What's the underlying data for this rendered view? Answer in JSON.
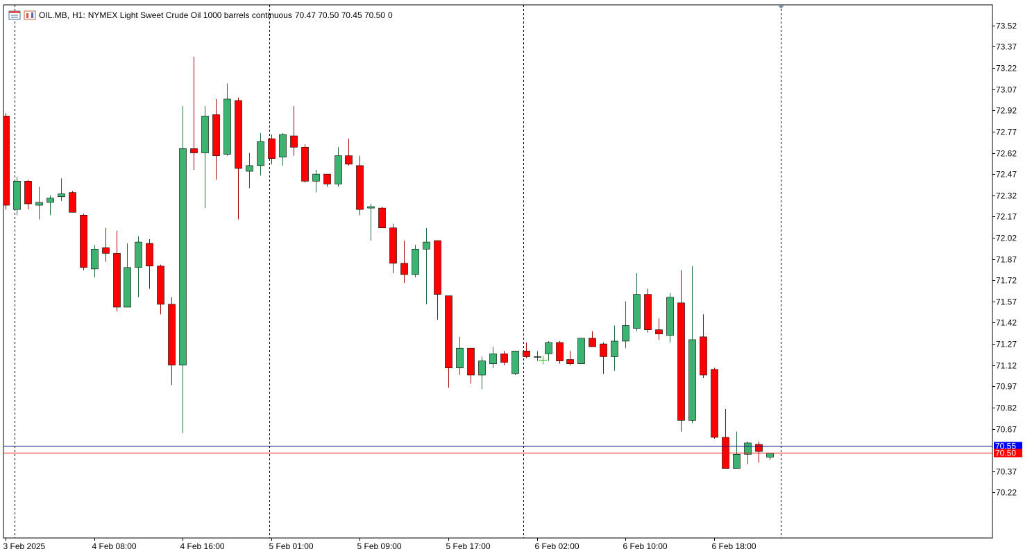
{
  "header": {
    "symbol": "OIL.MB,",
    "timeframe": "H1:",
    "description": "NYMEX Light Sweet Crude Oil 1000 barrels continuous",
    "ohlc": "70.47 70.50 70.45 70.50",
    "volume": "0"
  },
  "price_labels": {
    "ask": "70.55",
    "bid": "70.50"
  },
  "colors": {
    "bull": "#3cb371",
    "bear": "#ff0000",
    "wick": "#000000",
    "ask_label_bg": "#0000ff",
    "bid_label_bg": "#ff0000",
    "ask_line": "#000080",
    "bid_line": "#ff0000",
    "grid_vline": "#000000"
  },
  "chart_data": {
    "type": "candlestick",
    "timeframe": "H1",
    "y_ticks": [
      "73.52",
      "73.37",
      "73.22",
      "73.07",
      "72.92",
      "72.77",
      "72.62",
      "72.47",
      "72.32",
      "72.17",
      "72.02",
      "71.87",
      "71.72",
      "71.57",
      "71.42",
      "71.27",
      "71.12",
      "70.97",
      "70.82",
      "70.67",
      "70.37",
      "70.22"
    ],
    "y_range": [
      70.12,
      73.6
    ],
    "x_labels": [
      {
        "bar": 0,
        "text": "3 Feb 2025"
      },
      {
        "bar": 8,
        "text": "4 Feb 08:00"
      },
      {
        "bar": 16,
        "text": "4 Feb 16:00"
      },
      {
        "bar": 24,
        "text": "5 Feb 01:00"
      },
      {
        "bar": 32,
        "text": "5 Feb 09:00"
      },
      {
        "bar": 40,
        "text": "5 Feb 17:00"
      },
      {
        "bar": 48,
        "text": "6 Feb 02:00"
      },
      {
        "bar": 56,
        "text": "6 Feb 10:00"
      },
      {
        "bar": 64,
        "text": "6 Feb 18:00"
      }
    ],
    "vertical_separators_at_bar": [
      0.8,
      23.8,
      46.8,
      70
    ],
    "bid": 70.5,
    "ask": 70.55,
    "candles": [
      [
        72.88,
        72.9,
        72.22,
        72.25
      ],
      [
        72.22,
        72.45,
        72.18,
        72.42
      ],
      [
        72.42,
        72.43,
        72.22,
        72.26
      ],
      [
        72.25,
        72.38,
        72.15,
        72.27
      ],
      [
        72.27,
        72.32,
        72.18,
        72.3
      ],
      [
        72.31,
        72.44,
        72.28,
        72.33
      ],
      [
        72.34,
        72.35,
        72.2,
        72.2
      ],
      [
        72.18,
        72.19,
        71.79,
        71.81
      ],
      [
        71.8,
        71.97,
        71.74,
        71.94
      ],
      [
        71.95,
        72.09,
        71.85,
        71.91
      ],
      [
        71.91,
        72.07,
        71.5,
        71.53
      ],
      [
        71.53,
        71.98,
        71.53,
        71.81
      ],
      [
        71.81,
        72.03,
        71.6,
        71.99
      ],
      [
        71.98,
        72.01,
        71.66,
        71.82
      ],
      [
        71.82,
        71.83,
        71.48,
        71.55
      ],
      [
        71.55,
        71.6,
        70.98,
        71.12
      ],
      [
        71.12,
        72.95,
        70.64,
        72.65
      ],
      [
        72.65,
        73.3,
        72.5,
        72.62
      ],
      [
        72.62,
        72.95,
        72.23,
        72.88
      ],
      [
        72.89,
        73.0,
        72.43,
        72.6
      ],
      [
        72.61,
        73.11,
        72.6,
        73.0
      ],
      [
        72.99,
        73.01,
        72.15,
        72.51
      ],
      [
        72.49,
        72.62,
        72.37,
        72.53
      ],
      [
        72.53,
        72.76,
        72.46,
        72.7
      ],
      [
        72.72,
        72.75,
        72.54,
        72.58
      ],
      [
        72.59,
        72.76,
        72.53,
        72.75
      ],
      [
        72.74,
        72.95,
        72.6,
        72.66
      ],
      [
        72.66,
        72.68,
        72.41,
        72.42
      ],
      [
        72.42,
        72.5,
        72.34,
        72.47
      ],
      [
        72.47,
        72.47,
        72.38,
        72.4
      ],
      [
        72.4,
        72.66,
        72.38,
        72.6
      ],
      [
        72.6,
        72.72,
        72.53,
        72.54
      ],
      [
        72.53,
        72.6,
        72.18,
        72.22
      ],
      [
        72.23,
        72.26,
        72.0,
        72.24
      ],
      [
        72.23,
        72.24,
        72.09,
        72.09
      ],
      [
        72.09,
        72.12,
        71.77,
        71.84
      ],
      [
        71.84,
        72.0,
        71.7,
        71.76
      ],
      [
        71.76,
        71.97,
        71.74,
        71.94
      ],
      [
        71.94,
        72.09,
        71.55,
        71.99
      ],
      [
        72.0,
        72.0,
        71.44,
        71.62
      ],
      [
        71.61,
        71.61,
        70.96,
        71.1
      ],
      [
        71.1,
        71.32,
        71.05,
        71.24
      ],
      [
        71.24,
        71.24,
        70.99,
        71.05
      ],
      [
        71.05,
        71.18,
        70.95,
        71.15
      ],
      [
        71.13,
        71.25,
        71.1,
        71.2
      ],
      [
        71.2,
        71.22,
        71.12,
        71.14
      ],
      [
        71.06,
        71.22,
        71.05,
        71.22
      ],
      [
        71.22,
        71.28,
        71.17,
        71.18
      ],
      [
        71.18,
        71.22,
        71.15,
        71.18
      ],
      [
        71.2,
        71.29,
        71.15,
        71.28
      ],
      [
        71.28,
        71.29,
        71.13,
        71.15
      ],
      [
        71.16,
        71.22,
        71.12,
        71.13
      ],
      [
        71.13,
        71.31,
        71.13,
        71.31
      ],
      [
        71.31,
        71.36,
        71.25,
        71.25
      ],
      [
        71.27,
        71.28,
        71.06,
        71.18
      ],
      [
        71.18,
        71.4,
        71.08,
        71.29
      ],
      [
        71.29,
        71.57,
        71.24,
        71.4
      ],
      [
        71.38,
        71.77,
        71.36,
        71.62
      ],
      [
        71.62,
        71.66,
        71.35,
        71.37
      ],
      [
        71.37,
        71.45,
        71.3,
        71.34
      ],
      [
        71.33,
        71.63,
        71.28,
        71.6
      ],
      [
        71.56,
        71.79,
        70.65,
        70.73
      ],
      [
        70.73,
        71.82,
        70.71,
        71.3
      ],
      [
        71.32,
        71.48,
        71.03,
        71.05
      ],
      [
        71.09,
        71.1,
        70.6,
        70.61
      ],
      [
        70.61,
        70.81,
        70.39,
        70.39
      ],
      [
        70.39,
        70.65,
        70.39,
        70.49
      ],
      [
        70.49,
        70.58,
        70.42,
        70.57
      ],
      [
        70.56,
        70.58,
        70.43,
        70.51
      ],
      [
        70.47,
        70.5,
        70.45,
        70.5
      ]
    ]
  }
}
